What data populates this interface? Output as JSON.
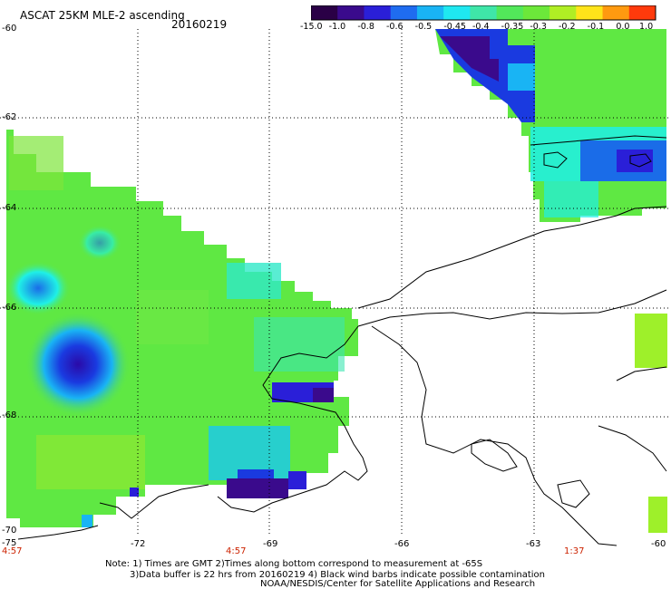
{
  "header": {
    "title": "ASCAT 25KM MLE-2 ascending",
    "date": "20160219"
  },
  "colorbar": {
    "labels": [
      "-15.0",
      "-1.0",
      "-0.8",
      "-0.6",
      "-0.5",
      "-0.45",
      "-0.4",
      "-0.35",
      "-0.3",
      "-0.2",
      "-0.1",
      "0.0",
      "1.0"
    ],
    "colors": [
      "#2a0046",
      "#3a0a8c",
      "#2a1fd8",
      "#1f6cf0",
      "#19b4f4",
      "#1fe8f0",
      "#3fe6a8",
      "#52e85a",
      "#6ce83a",
      "#b0ee24",
      "#ffe41a",
      "#ff9a10",
      "#ff3a0c"
    ]
  },
  "axes": {
    "lat_labels": [
      "-60",
      "-62",
      "-64",
      "-66",
      "-68",
      "-70"
    ],
    "lon_labels": [
      "-75",
      "-72",
      "-69",
      "-66",
      "-63",
      "-60"
    ],
    "time_labels": [
      "4:57",
      "4:57",
      "1:37"
    ]
  },
  "notes": {
    "line1": "Note: 1) Times are GMT 2)Times along bottom correspond to measurement at -65S",
    "line2": "3)Data buffer is 22 hrs from 20160219 4) Black wind barbs indicate possible contamination",
    "line3": "NOAA/NESDIS/Center for Satellite Applications and Research"
  },
  "palette": {
    "green": "#5fe843",
    "cyan": "#1ff0e6",
    "blue": "#1a3ae0",
    "purple": "#3a0a8c",
    "lime": "#9ef02a"
  }
}
